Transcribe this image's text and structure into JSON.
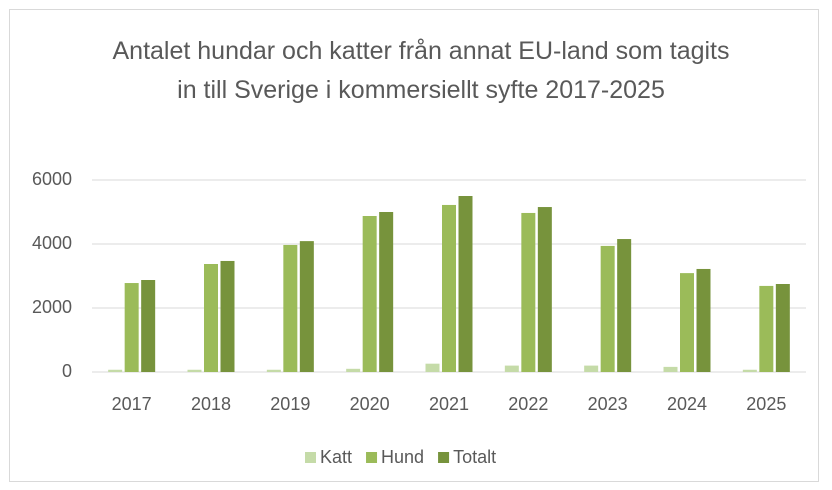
{
  "chart_data": {
    "type": "bar",
    "title": "Antalet hundar och katter från annat EU-land som tagits in till Sverige i kommersiellt syfte 2017-2025",
    "categories": [
      "2017",
      "2018",
      "2019",
      "2020",
      "2021",
      "2022",
      "2023",
      "2024",
      "2025"
    ],
    "series": [
      {
        "name": "Katt",
        "color": "#c5dba8",
        "values": [
          70,
          70,
          70,
          100,
          260,
          200,
          200,
          160,
          70
        ]
      },
      {
        "name": "Hund",
        "color": "#9bbb59",
        "values": [
          2780,
          3375,
          3970,
          4875,
          5220,
          4970,
          3940,
          3090,
          2690
        ]
      },
      {
        "name": "Totalt",
        "color": "#77933c",
        "values": [
          2875,
          3470,
          4090,
          5000,
          5500,
          5155,
          4155,
          3220,
          2750
        ]
      }
    ],
    "ylim": [
      0,
      6000
    ],
    "yticks": [
      0,
      2000,
      4000,
      6000
    ],
    "grid": true,
    "legend": "bottom"
  }
}
